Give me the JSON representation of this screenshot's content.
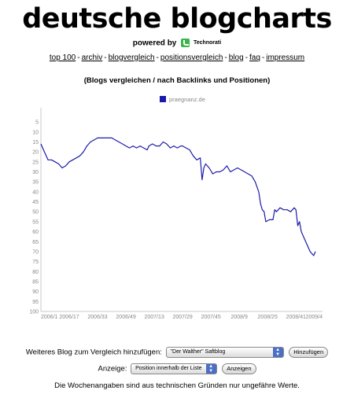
{
  "header": {
    "title": "deutsche blogcharts",
    "powered_by": "powered by",
    "brand": "Technorati"
  },
  "nav": [
    {
      "label": "top 100"
    },
    {
      "label": "archiv"
    },
    {
      "label": "blogvergleich"
    },
    {
      "label": "positionsvergleich"
    },
    {
      "label": "blog"
    },
    {
      "label": "faq"
    },
    {
      "label": "impressum"
    }
  ],
  "subtitle": "(Blogs vergleichen / nach Backlinks und Positionen)",
  "chart_data": {
    "type": "line",
    "title": "",
    "xlabel": "",
    "ylabel": "",
    "y_inverted": true,
    "ylim": [
      1,
      100
    ],
    "yticks": [
      5,
      10,
      15,
      20,
      25,
      30,
      35,
      40,
      45,
      50,
      55,
      60,
      65,
      70,
      75,
      80,
      85,
      90,
      95,
      100
    ],
    "xticks": [
      "2006/1",
      "2006/17",
      "2006/33",
      "2006/49",
      "2007/13",
      "2007/29",
      "2007/45",
      "2008/9",
      "2008/25",
      "2008/41",
      "2009/4"
    ],
    "grid": false,
    "legend": "top-center",
    "series": [
      {
        "name": "praegnanz.de",
        "color": "#1a1aaa",
        "points": [
          [
            "2006/1",
            16
          ],
          [
            "2006/3",
            20
          ],
          [
            "2006/5",
            24
          ],
          [
            "2006/7",
            24
          ],
          [
            "2006/9",
            25
          ],
          [
            "2006/11",
            26
          ],
          [
            "2006/13",
            28
          ],
          [
            "2006/15",
            27
          ],
          [
            "2006/17",
            25
          ],
          [
            "2006/19",
            24
          ],
          [
            "2006/21",
            23
          ],
          [
            "2006/23",
            22
          ],
          [
            "2006/25",
            20
          ],
          [
            "2006/27",
            17
          ],
          [
            "2006/29",
            15
          ],
          [
            "2006/31",
            14
          ],
          [
            "2006/33",
            13
          ],
          [
            "2006/37",
            13
          ],
          [
            "2006/41",
            13
          ],
          [
            "2006/43",
            14
          ],
          [
            "2006/45",
            15
          ],
          [
            "2006/47",
            16
          ],
          [
            "2006/49",
            17
          ],
          [
            "2006/51",
            18
          ],
          [
            "2007/1",
            17
          ],
          [
            "2007/3",
            18
          ],
          [
            "2007/5",
            17
          ],
          [
            "2007/7",
            18
          ],
          [
            "2007/9",
            19
          ],
          [
            "2007/10",
            17
          ],
          [
            "2007/12",
            16
          ],
          [
            "2007/14",
            17
          ],
          [
            "2007/16",
            17
          ],
          [
            "2007/18",
            15
          ],
          [
            "2007/20",
            16
          ],
          [
            "2007/22",
            18
          ],
          [
            "2007/24",
            17
          ],
          [
            "2007/26",
            18
          ],
          [
            "2007/28",
            17
          ],
          [
            "2007/29",
            17
          ],
          [
            "2007/31",
            18
          ],
          [
            "2007/33",
            19
          ],
          [
            "2007/35",
            22
          ],
          [
            "2007/37",
            24
          ],
          [
            "2007/39",
            23
          ],
          [
            "2007/40",
            34
          ],
          [
            "2007/41",
            28
          ],
          [
            "2007/42",
            26
          ],
          [
            "2007/44",
            28
          ],
          [
            "2007/46",
            31
          ],
          [
            "2007/48",
            30
          ],
          [
            "2007/50",
            30
          ],
          [
            "2007/52",
            29
          ],
          [
            "2008/2",
            27
          ],
          [
            "2008/4",
            30
          ],
          [
            "2008/6",
            29
          ],
          [
            "2008/8",
            28
          ],
          [
            "2008/10",
            29
          ],
          [
            "2008/12",
            30
          ],
          [
            "2008/14",
            31
          ],
          [
            "2008/16",
            32
          ],
          [
            "2008/18",
            35
          ],
          [
            "2008/20",
            40
          ],
          [
            "2008/21",
            46
          ],
          [
            "2008/22",
            49
          ],
          [
            "2008/23",
            50
          ],
          [
            "2008/24",
            55
          ],
          [
            "2008/26",
            54
          ],
          [
            "2008/28",
            54
          ],
          [
            "2008/29",
            49
          ],
          [
            "2008/30",
            50
          ],
          [
            "2008/32",
            48
          ],
          [
            "2008/34",
            49
          ],
          [
            "2008/36",
            49
          ],
          [
            "2008/38",
            50
          ],
          [
            "2008/40",
            48
          ],
          [
            "2008/41",
            49
          ],
          [
            "2008/42",
            57
          ],
          [
            "2008/43",
            55
          ],
          [
            "2008/44",
            60
          ],
          [
            "2008/46",
            64
          ],
          [
            "2008/48",
            68
          ],
          [
            "2008/49",
            70
          ],
          [
            "2008/50",
            71
          ],
          [
            "2008/51",
            72
          ],
          [
            "2008/52",
            70
          ]
        ]
      }
    ]
  },
  "controls": {
    "add_label": "Weiteres Blog zum Vergleich hinzufügen:",
    "add_select_value": "\"Der Walther\" Saftblog",
    "add_button": "Hinzufügen",
    "display_label": "Anzeige:",
    "display_select_value": "Position innerhalb der Liste",
    "display_button": "Anzeigen"
  },
  "footer": "Die Wochenangaben sind aus technischen Gründen nur ungefähre Werte."
}
